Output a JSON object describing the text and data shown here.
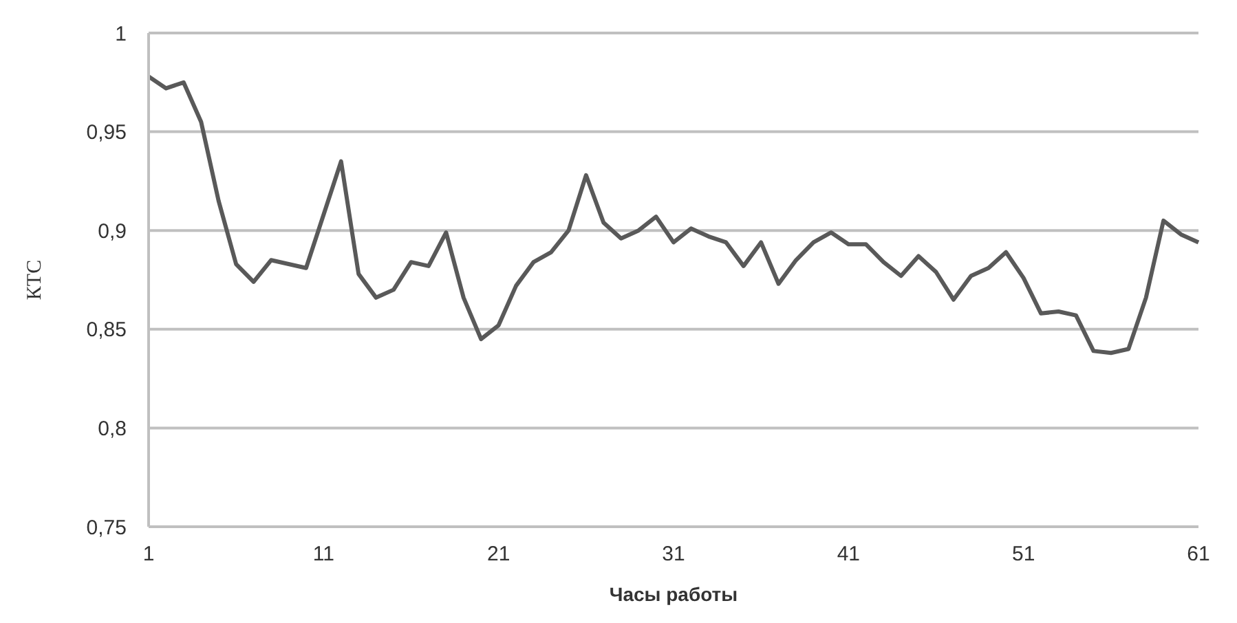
{
  "chart_data": {
    "type": "line",
    "xlabel": "Часы работы",
    "ylabel": "КТС",
    "categories": [
      "1",
      null,
      null,
      null,
      null,
      null,
      null,
      null,
      null,
      null,
      "11",
      null,
      null,
      null,
      null,
      null,
      null,
      null,
      null,
      null,
      "21",
      null,
      null,
      null,
      null,
      null,
      null,
      null,
      null,
      null,
      "31",
      null,
      null,
      null,
      null,
      null,
      null,
      null,
      null,
      null,
      "41",
      null,
      null,
      null,
      null,
      null,
      null,
      null,
      null,
      null,
      "51",
      null,
      null,
      null,
      null,
      null,
      null,
      null,
      null,
      null,
      "61"
    ],
    "series": [
      {
        "color": "#595959",
        "values": [
          0.978,
          0.972,
          0.975,
          0.955,
          0.915,
          0.883,
          0.874,
          0.885,
          0.883,
          0.881,
          0.908,
          0.935,
          0.878,
          0.866,
          0.87,
          0.884,
          0.882,
          0.899,
          0.866,
          0.845,
          0.852,
          0.872,
          0.884,
          0.889,
          0.9,
          0.928,
          0.904,
          0.896,
          0.9,
          0.907,
          0.894,
          0.901,
          0.897,
          0.894,
          0.882,
          0.894,
          0.873,
          0.885,
          0.894,
          0.899,
          0.893,
          0.893,
          0.884,
          0.877,
          0.887,
          0.879,
          0.865,
          0.877,
          0.881,
          0.889,
          0.876,
          0.858,
          0.859,
          0.857,
          0.839,
          0.838,
          0.84,
          0.866,
          0.905,
          0.898,
          0.894
        ]
      }
    ],
    "ylim": [
      0.75,
      1
    ],
    "yticks": [
      {
        "value": 0.75,
        "label": "0,75"
      },
      {
        "value": 0.8,
        "label": "0,8"
      },
      {
        "value": 0.85,
        "label": "0,85"
      },
      {
        "value": 0.9,
        "label": "0,9"
      },
      {
        "value": 0.95,
        "label": "0,95"
      },
      {
        "value": 1,
        "label": "1"
      }
    ],
    "grid": "y",
    "marker": "none",
    "line_style": "solid"
  }
}
